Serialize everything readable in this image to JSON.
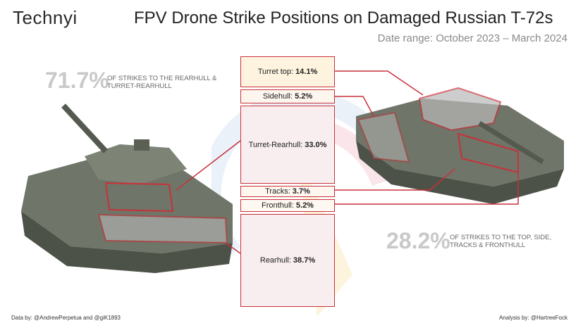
{
  "logo": {
    "text": "Technyi"
  },
  "title": "FPV Drone Strike Positions on Damaged Russian T-72s",
  "subtitle": "Date range: October 2023 – March 2024",
  "left_summary": {
    "percent": "71.7%",
    "note": "OF STRIKES TO THE REARHULL & TURRET-REARHULL"
  },
  "right_summary": {
    "percent": "28.2%",
    "note": "OF STRIKES TO THE TOP, SIDE, TRACKS & FRONTHULL"
  },
  "segments": [
    {
      "label": "Turret top:",
      "value": "14.1%",
      "share": 14.1,
      "fill": "#fdf3df"
    },
    {
      "label": "Sidehull:",
      "value": "5.2%",
      "share": 5.2,
      "fill": "#fdf6ee"
    },
    {
      "label": "Turret-Rearhull:",
      "value": "33.0%",
      "share": 33.0,
      "fill": "#f8eef0"
    },
    {
      "label": "Tracks:",
      "value": "3.7%",
      "share": 3.7,
      "fill": "#fdf7f0"
    },
    {
      "label": "Fronthull:",
      "value": "5.2%",
      "share": 5.2,
      "fill": "#fdf8f1"
    },
    {
      "label": "Rearhull:",
      "value": "38.7%",
      "share": 38.7,
      "fill": "#f8eef0"
    }
  ],
  "footer": {
    "data_by": "Data by: @AndrewPerpetua and @giK1893",
    "analysis_by": "Analysis by: @HartreeFock"
  },
  "colors": {
    "accent": "#c8313a",
    "tank": "#6f7568",
    "watermark_yellow": "#f4c542",
    "watermark_blue": "#8fb3e0"
  }
}
